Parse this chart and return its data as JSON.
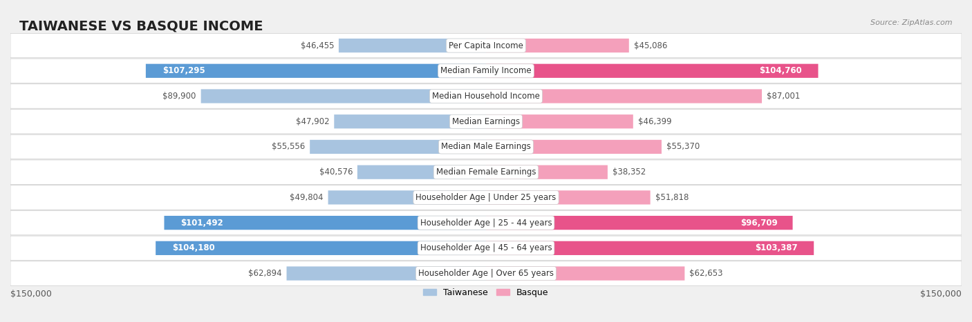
{
  "title": "TAIWANESE VS BASQUE INCOME",
  "source": "Source: ZipAtlas.com",
  "categories": [
    "Per Capita Income",
    "Median Family Income",
    "Median Household Income",
    "Median Earnings",
    "Median Male Earnings",
    "Median Female Earnings",
    "Householder Age | Under 25 years",
    "Householder Age | 25 - 44 years",
    "Householder Age | 45 - 64 years",
    "Householder Age | Over 65 years"
  ],
  "taiwanese_values": [
    46455,
    107295,
    89900,
    47902,
    55556,
    40576,
    49804,
    101492,
    104180,
    62894
  ],
  "basque_values": [
    45086,
    104760,
    87001,
    46399,
    55370,
    38352,
    51818,
    96709,
    103387,
    62653
  ],
  "taiwanese_labels": [
    "$46,455",
    "$107,295",
    "$89,900",
    "$47,902",
    "$55,556",
    "$40,576",
    "$49,804",
    "$101,492",
    "$104,180",
    "$62,894"
  ],
  "basque_labels": [
    "$45,086",
    "$104,760",
    "$87,001",
    "$46,399",
    "$55,370",
    "$38,352",
    "$51,818",
    "$96,709",
    "$103,387",
    "$62,653"
  ],
  "taiwanese_color_light": "#a8c4e0",
  "taiwanese_color_dark": "#5b9bd5",
  "basque_color_light": "#f4a0bb",
  "basque_color_dark": "#e8538a",
  "max_value": 150000,
  "background_color": "#f0f0f0",
  "row_bg_color": "#f8f8f8",
  "row_border_color": "#cccccc",
  "title_fontsize": 14,
  "label_fontsize": 8.5,
  "category_fontsize": 8.5,
  "legend_fontsize": 9,
  "source_fontsize": 8
}
